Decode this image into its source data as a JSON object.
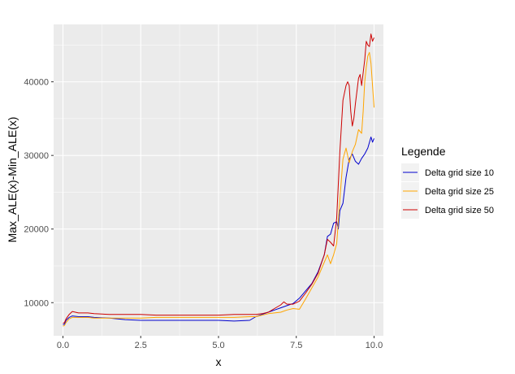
{
  "chart_data": {
    "type": "line",
    "xlabel": "x",
    "ylabel": "Max_ALE(x)-Min_ALE(x)",
    "xlim": [
      -0.3,
      10.3
    ],
    "ylim": [
      5500,
      47800
    ],
    "x_ticks": [
      0.0,
      2.5,
      5.0,
      7.5,
      10.0
    ],
    "x_tick_labels": [
      "0.0",
      "2.5",
      "5.0",
      "7.5",
      "10.0"
    ],
    "y_ticks": [
      10000,
      20000,
      30000,
      40000
    ],
    "y_tick_labels": [
      "10000",
      "20000",
      "30000",
      "40000"
    ],
    "grid": true,
    "legend": {
      "title": "Legende",
      "position": "right"
    },
    "series": [
      {
        "name": "Delta grid size 10",
        "color": "#0000cd",
        "x": [
          0.0,
          0.05,
          0.1,
          0.2,
          0.3,
          0.5,
          0.8,
          1.0,
          1.5,
          2.0,
          2.5,
          3.0,
          3.5,
          4.0,
          4.5,
          5.0,
          5.5,
          6.0,
          6.2,
          6.4,
          6.6,
          6.8,
          7.0,
          7.2,
          7.4,
          7.6,
          7.8,
          8.0,
          8.2,
          8.4,
          8.5,
          8.6,
          8.7,
          8.8,
          8.85,
          8.9,
          9.0,
          9.1,
          9.2,
          9.3,
          9.4,
          9.5,
          9.6,
          9.7,
          9.8,
          9.9,
          9.95,
          10.0
        ],
        "values": [
          7000,
          7100,
          7600,
          8000,
          8200,
          8100,
          8100,
          8000,
          7900,
          7700,
          7600,
          7600,
          7600,
          7600,
          7600,
          7600,
          7500,
          7600,
          8100,
          8400,
          8700,
          9000,
          9300,
          9600,
          9900,
          10600,
          11600,
          12600,
          14200,
          16500,
          19000,
          19300,
          20800,
          21000,
          20000,
          22500,
          23500,
          27000,
          29500,
          30200,
          29200,
          28800,
          29600,
          30200,
          31000,
          32500,
          31800,
          32300
        ]
      },
      {
        "name": "Delta grid size 25",
        "color": "#ffa500",
        "x": [
          0.0,
          0.05,
          0.1,
          0.2,
          0.3,
          0.5,
          0.8,
          1.0,
          1.5,
          2.0,
          2.5,
          3.0,
          3.5,
          4.0,
          4.5,
          5.0,
          5.5,
          6.0,
          6.2,
          6.4,
          6.6,
          6.8,
          7.0,
          7.2,
          7.4,
          7.6,
          7.8,
          8.0,
          8.2,
          8.4,
          8.5,
          8.6,
          8.7,
          8.8,
          8.9,
          9.0,
          9.1,
          9.2,
          9.3,
          9.4,
          9.5,
          9.6,
          9.65,
          9.7,
          9.75,
          9.8,
          9.85,
          9.9,
          9.95,
          10.0
        ],
        "values": [
          6800,
          6900,
          7300,
          7800,
          8000,
          8000,
          8000,
          7900,
          7900,
          7900,
          7900,
          8000,
          8000,
          8000,
          8000,
          8000,
          8000,
          8100,
          8100,
          8300,
          8500,
          8600,
          8700,
          9000,
          9200,
          9100,
          10500,
          12000,
          13500,
          15500,
          16500,
          15300,
          16500,
          18000,
          24000,
          29500,
          31000,
          29000,
          30500,
          31500,
          33500,
          33000,
          36000,
          40000,
          42000,
          43500,
          44000,
          42500,
          39500,
          36500
        ]
      },
      {
        "name": "Delta grid size 50",
        "color": "#cd0000",
        "x": [
          0.0,
          0.05,
          0.1,
          0.2,
          0.3,
          0.5,
          0.8,
          1.0,
          1.5,
          2.0,
          2.5,
          3.0,
          3.5,
          4.0,
          4.5,
          5.0,
          5.5,
          6.0,
          6.2,
          6.4,
          6.6,
          6.8,
          7.0,
          7.1,
          7.2,
          7.4,
          7.6,
          7.8,
          8.0,
          8.2,
          8.4,
          8.5,
          8.6,
          8.7,
          8.8,
          8.9,
          9.0,
          9.05,
          9.1,
          9.15,
          9.2,
          9.25,
          9.3,
          9.35,
          9.4,
          9.5,
          9.55,
          9.6,
          9.7,
          9.75,
          9.8,
          9.85,
          9.9,
          9.95,
          10.0
        ],
        "values": [
          7200,
          7300,
          7800,
          8400,
          8800,
          8600,
          8600,
          8500,
          8400,
          8400,
          8400,
          8300,
          8300,
          8300,
          8300,
          8300,
          8400,
          8400,
          8400,
          8500,
          8700,
          9200,
          9700,
          10100,
          9800,
          9800,
          10200,
          11300,
          12500,
          14000,
          16500,
          18600,
          18200,
          17700,
          21500,
          30500,
          37500,
          38500,
          39500,
          40000,
          39500,
          36000,
          34000,
          35000,
          37000,
          40500,
          41000,
          39500,
          43000,
          45500,
          45000,
          44800,
          46500,
          45500,
          46000
        ]
      }
    ]
  }
}
